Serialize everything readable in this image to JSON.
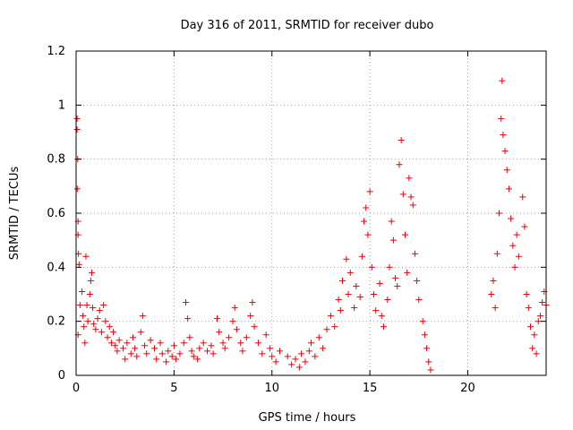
{
  "chart_data": {
    "type": "scatter",
    "title": "Day 316 of 2011, SRMTID for receiver dubo",
    "xlabel": "GPS time / hours",
    "ylabel": "SRMTID / TECUs",
    "xlim": [
      0,
      24
    ],
    "ylim": [
      0,
      1.2
    ],
    "xticks": [
      0,
      5,
      10,
      15,
      20
    ],
    "xtick_labels": [
      "0",
      "5",
      "10",
      "15",
      "20"
    ],
    "yticks": [
      0,
      0.2,
      0.4,
      0.6,
      0.8,
      1,
      1.2
    ],
    "ytick_labels": [
      "0",
      "0.2",
      "0.4",
      "0.6",
      "0.8",
      "1",
      "1.2"
    ],
    "grid": true,
    "marker": "+",
    "marker_color": "#e8000b",
    "series": [
      {
        "name": "SRMTID",
        "points": [
          [
            0.05,
            0.95
          ],
          [
            0.05,
            0.91
          ],
          [
            0.08,
            0.8
          ],
          [
            0.06,
            0.69
          ],
          [
            0.1,
            0.57
          ],
          [
            0.1,
            0.52
          ],
          [
            0.12,
            0.45
          ],
          [
            0.15,
            0.41
          ],
          [
            0.2,
            0.26
          ],
          [
            0.1,
            0.15
          ],
          [
            0.3,
            0.31
          ],
          [
            0.35,
            0.22
          ],
          [
            0.4,
            0.18
          ],
          [
            0.45,
            0.12
          ],
          [
            0.5,
            0.44
          ],
          [
            0.55,
            0.26
          ],
          [
            0.6,
            0.2
          ],
          [
            0.7,
            0.3
          ],
          [
            0.75,
            0.35
          ],
          [
            0.8,
            0.38
          ],
          [
            0.85,
            0.25
          ],
          [
            0.9,
            0.19
          ],
          [
            1.0,
            0.17
          ],
          [
            1.1,
            0.21
          ],
          [
            1.2,
            0.24
          ],
          [
            1.3,
            0.16
          ],
          [
            1.4,
            0.26
          ],
          [
            1.5,
            0.2
          ],
          [
            1.6,
            0.14
          ],
          [
            1.7,
            0.18
          ],
          [
            1.8,
            0.12
          ],
          [
            1.9,
            0.16
          ],
          [
            2.0,
            0.11
          ],
          [
            2.1,
            0.09
          ],
          [
            2.2,
            0.13
          ],
          [
            2.4,
            0.1
          ],
          [
            2.5,
            0.06
          ],
          [
            2.6,
            0.12
          ],
          [
            2.8,
            0.08
          ],
          [
            2.9,
            0.14
          ],
          [
            3.0,
            0.1
          ],
          [
            3.1,
            0.07
          ],
          [
            3.3,
            0.16
          ],
          [
            3.4,
            0.22
          ],
          [
            3.5,
            0.11
          ],
          [
            3.6,
            0.08
          ],
          [
            3.8,
            0.13
          ],
          [
            4.0,
            0.1
          ],
          [
            4.1,
            0.06
          ],
          [
            4.3,
            0.12
          ],
          [
            4.4,
            0.08
          ],
          [
            4.6,
            0.05
          ],
          [
            4.7,
            0.09
          ],
          [
            4.9,
            0.07
          ],
          [
            5.0,
            0.11
          ],
          [
            5.1,
            0.06
          ],
          [
            5.3,
            0.08
          ],
          [
            5.5,
            0.12
          ],
          [
            5.6,
            0.27
          ],
          [
            5.7,
            0.21
          ],
          [
            5.8,
            0.14
          ],
          [
            5.9,
            0.09
          ],
          [
            6.0,
            0.07
          ],
          [
            6.2,
            0.06
          ],
          [
            6.3,
            0.1
          ],
          [
            6.5,
            0.12
          ],
          [
            6.7,
            0.09
          ],
          [
            6.9,
            0.11
          ],
          [
            7.0,
            0.08
          ],
          [
            7.2,
            0.21
          ],
          [
            7.3,
            0.16
          ],
          [
            7.5,
            0.12
          ],
          [
            7.6,
            0.1
          ],
          [
            7.8,
            0.14
          ],
          [
            8.0,
            0.2
          ],
          [
            8.1,
            0.25
          ],
          [
            8.2,
            0.17
          ],
          [
            8.4,
            0.12
          ],
          [
            8.5,
            0.09
          ],
          [
            8.7,
            0.14
          ],
          [
            8.9,
            0.22
          ],
          [
            9.0,
            0.27
          ],
          [
            9.1,
            0.18
          ],
          [
            9.3,
            0.12
          ],
          [
            9.5,
            0.08
          ],
          [
            9.7,
            0.15
          ],
          [
            9.9,
            0.1
          ],
          [
            10.0,
            0.07
          ],
          [
            10.2,
            0.05
          ],
          [
            10.4,
            0.09
          ],
          [
            10.8,
            0.07
          ],
          [
            11.0,
            0.04
          ],
          [
            11.2,
            0.06
          ],
          [
            11.4,
            0.03
          ],
          [
            11.5,
            0.08
          ],
          [
            11.7,
            0.05
          ],
          [
            11.9,
            0.09
          ],
          [
            12.0,
            0.12
          ],
          [
            12.2,
            0.07
          ],
          [
            12.4,
            0.14
          ],
          [
            12.6,
            0.1
          ],
          [
            12.8,
            0.17
          ],
          [
            13.0,
            0.22
          ],
          [
            13.2,
            0.18
          ],
          [
            13.4,
            0.28
          ],
          [
            13.5,
            0.24
          ],
          [
            13.6,
            0.35
          ],
          [
            13.8,
            0.43
          ],
          [
            13.9,
            0.3
          ],
          [
            14.0,
            0.38
          ],
          [
            14.2,
            0.25
          ],
          [
            14.3,
            0.33
          ],
          [
            14.5,
            0.29
          ],
          [
            14.6,
            0.44
          ],
          [
            14.7,
            0.57
          ],
          [
            14.8,
            0.62
          ],
          [
            14.9,
            0.52
          ],
          [
            15.0,
            0.68
          ],
          [
            15.1,
            0.4
          ],
          [
            15.2,
            0.3
          ],
          [
            15.3,
            0.24
          ],
          [
            15.5,
            0.34
          ],
          [
            15.6,
            0.22
          ],
          [
            15.7,
            0.18
          ],
          [
            15.9,
            0.28
          ],
          [
            16.0,
            0.4
          ],
          [
            16.1,
            0.57
          ],
          [
            16.2,
            0.5
          ],
          [
            16.3,
            0.36
          ],
          [
            16.4,
            0.33
          ],
          [
            16.5,
            0.78
          ],
          [
            16.6,
            0.87
          ],
          [
            16.7,
            0.67
          ],
          [
            16.8,
            0.52
          ],
          [
            16.9,
            0.38
          ],
          [
            17.0,
            0.73
          ],
          [
            17.1,
            0.66
          ],
          [
            17.2,
            0.63
          ],
          [
            17.3,
            0.45
          ],
          [
            17.4,
            0.35
          ],
          [
            17.5,
            0.28
          ],
          [
            17.7,
            0.2
          ],
          [
            17.8,
            0.15
          ],
          [
            17.9,
            0.1
          ],
          [
            18.0,
            0.05
          ],
          [
            18.1,
            0.02
          ],
          [
            21.2,
            0.3
          ],
          [
            21.3,
            0.35
          ],
          [
            21.4,
            0.25
          ],
          [
            21.5,
            0.45
          ],
          [
            21.6,
            0.6
          ],
          [
            21.7,
            0.95
          ],
          [
            21.75,
            1.09
          ],
          [
            21.8,
            0.89
          ],
          [
            21.9,
            0.83
          ],
          [
            22.0,
            0.76
          ],
          [
            22.1,
            0.69
          ],
          [
            22.2,
            0.58
          ],
          [
            22.3,
            0.48
          ],
          [
            22.4,
            0.4
          ],
          [
            22.5,
            0.52
          ],
          [
            22.6,
            0.44
          ],
          [
            22.8,
            0.66
          ],
          [
            22.9,
            0.55
          ],
          [
            23.0,
            0.3
          ],
          [
            23.1,
            0.25
          ],
          [
            23.2,
            0.18
          ],
          [
            23.3,
            0.1
          ],
          [
            23.4,
            0.15
          ],
          [
            23.5,
            0.08
          ],
          [
            23.6,
            0.2
          ],
          [
            23.7,
            0.22
          ],
          [
            23.8,
            0.27
          ],
          [
            23.9,
            0.31
          ],
          [
            24.0,
            0.26
          ]
        ]
      }
    ]
  }
}
